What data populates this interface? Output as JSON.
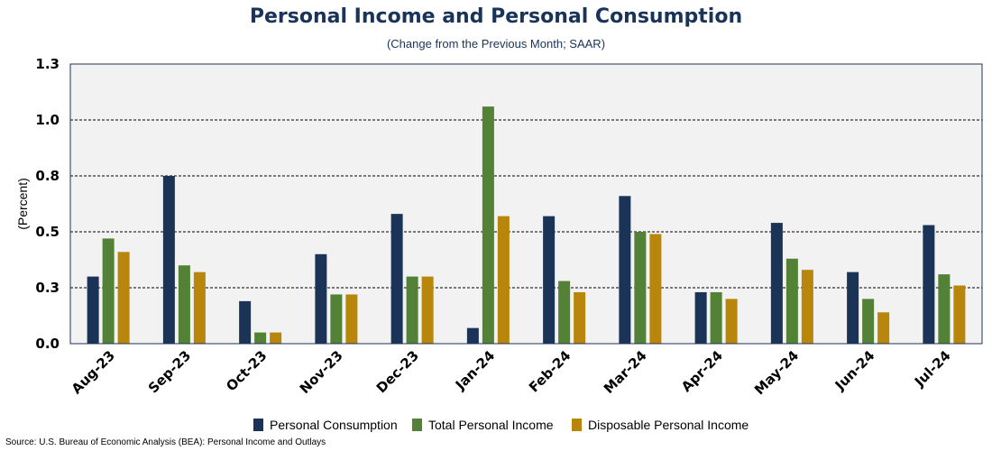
{
  "chart_data": {
    "type": "bar",
    "title": "Personal Income and Personal Consumption",
    "subtitle": "(Change from the Previous Month; SAAR)",
    "ylabel": "(Percent)",
    "xlabel": "",
    "ylim": [
      0,
      1.25
    ],
    "yticks": [
      0.0,
      0.25,
      0.5,
      0.75,
      1.0,
      1.25
    ],
    "ytick_labels": [
      "0.0",
      "0.3",
      "0.5",
      "0.8",
      "1.0",
      "1.3"
    ],
    "grid": "horizontal dashed",
    "legend_position": "bottom",
    "categories": [
      "Aug-23",
      "Sep-23",
      "Oct-23",
      "Nov-23",
      "Dec-23",
      "Jan-24",
      "Feb-24",
      "Mar-24",
      "Apr-24",
      "May-24",
      "Jun-24",
      "Jul-24"
    ],
    "series": [
      {
        "name": "Personal Consumption",
        "color": "#1c3358",
        "values": [
          0.3,
          0.75,
          0.19,
          0.4,
          0.58,
          0.07,
          0.57,
          0.66,
          0.23,
          0.54,
          0.32,
          0.53
        ]
      },
      {
        "name": "Total Personal Income",
        "color": "#538135",
        "values": [
          0.47,
          0.35,
          0.05,
          0.22,
          0.3,
          1.06,
          0.28,
          0.5,
          0.23,
          0.38,
          0.2,
          0.31
        ]
      },
      {
        "name": "Disposable Personal Income",
        "color": "#b8860b",
        "values": [
          0.41,
          0.32,
          0.05,
          0.22,
          0.3,
          0.57,
          0.23,
          0.49,
          0.2,
          0.33,
          0.14,
          0.26
        ]
      }
    ],
    "source": "Source: U.S. Bureau of Economic Analysis (BEA): Personal Income and Outlays"
  }
}
